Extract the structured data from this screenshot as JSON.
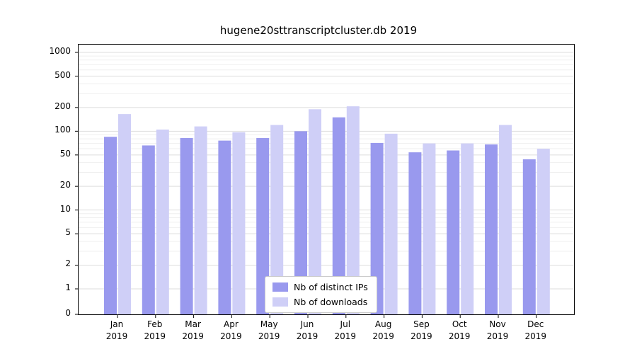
{
  "chart_data": {
    "type": "bar",
    "title": "hugene20sttranscriptcluster.db 2019",
    "categories": [
      "Jan",
      "Feb",
      "Mar",
      "Apr",
      "May",
      "Jun",
      "Jul",
      "Aug",
      "Sep",
      "Oct",
      "Nov",
      "Dec"
    ],
    "category_year": "2019",
    "series": [
      {
        "name": "Nb of distinct IPs",
        "color": "#9999ee",
        "values": [
          85,
          66,
          82,
          76,
          82,
          100,
          150,
          71,
          54,
          57,
          68,
          44
        ]
      },
      {
        "name": "Nb of downloads",
        "color": "#cfcff7",
        "values": [
          165,
          105,
          115,
          97,
          120,
          190,
          207,
          93,
          70,
          70,
          120,
          60
        ]
      }
    ],
    "yscale": "symlog",
    "yticks": [
      0,
      1,
      2,
      5,
      10,
      20,
      50,
      100,
      200,
      500,
      1000
    ],
    "ylim": [
      0,
      1300
    ],
    "grid": "horizontal",
    "legend_position": "bottom-center",
    "colors": {
      "major_grid": "#dddddd",
      "minor_grid": "#efefef",
      "axis": "#000000",
      "background": "#ffffff"
    }
  }
}
